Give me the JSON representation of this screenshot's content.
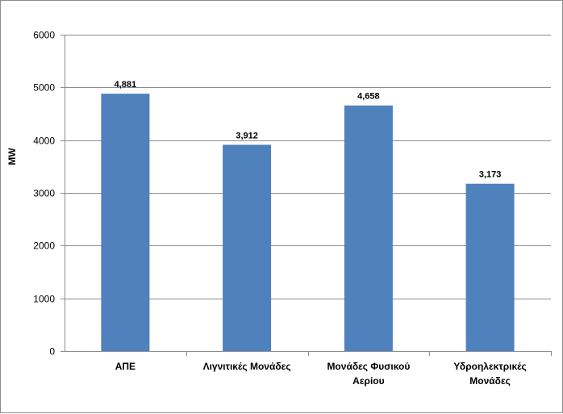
{
  "chart_data": {
    "type": "bar",
    "categories": [
      [
        "ΑΠΕ"
      ],
      [
        "Λιγνιτικές Μονάδες"
      ],
      [
        "Μονάδες Φυσικού",
        "Αερίου"
      ],
      [
        "Υδροηλεκτρικές",
        "Μονάδες"
      ]
    ],
    "values": [
      4881,
      3912,
      4658,
      3173
    ],
    "data_labels": [
      "4,881",
      "3,912",
      "4,658",
      "3,173"
    ],
    "ylabel": "MW",
    "ylim": [
      0,
      6000
    ],
    "yticks": [
      0,
      1000,
      2000,
      3000,
      4000,
      5000,
      6000
    ],
    "grid": true,
    "legend": "none",
    "bar_color": "#4f81bd",
    "grid_color": "#8c8c8c"
  }
}
